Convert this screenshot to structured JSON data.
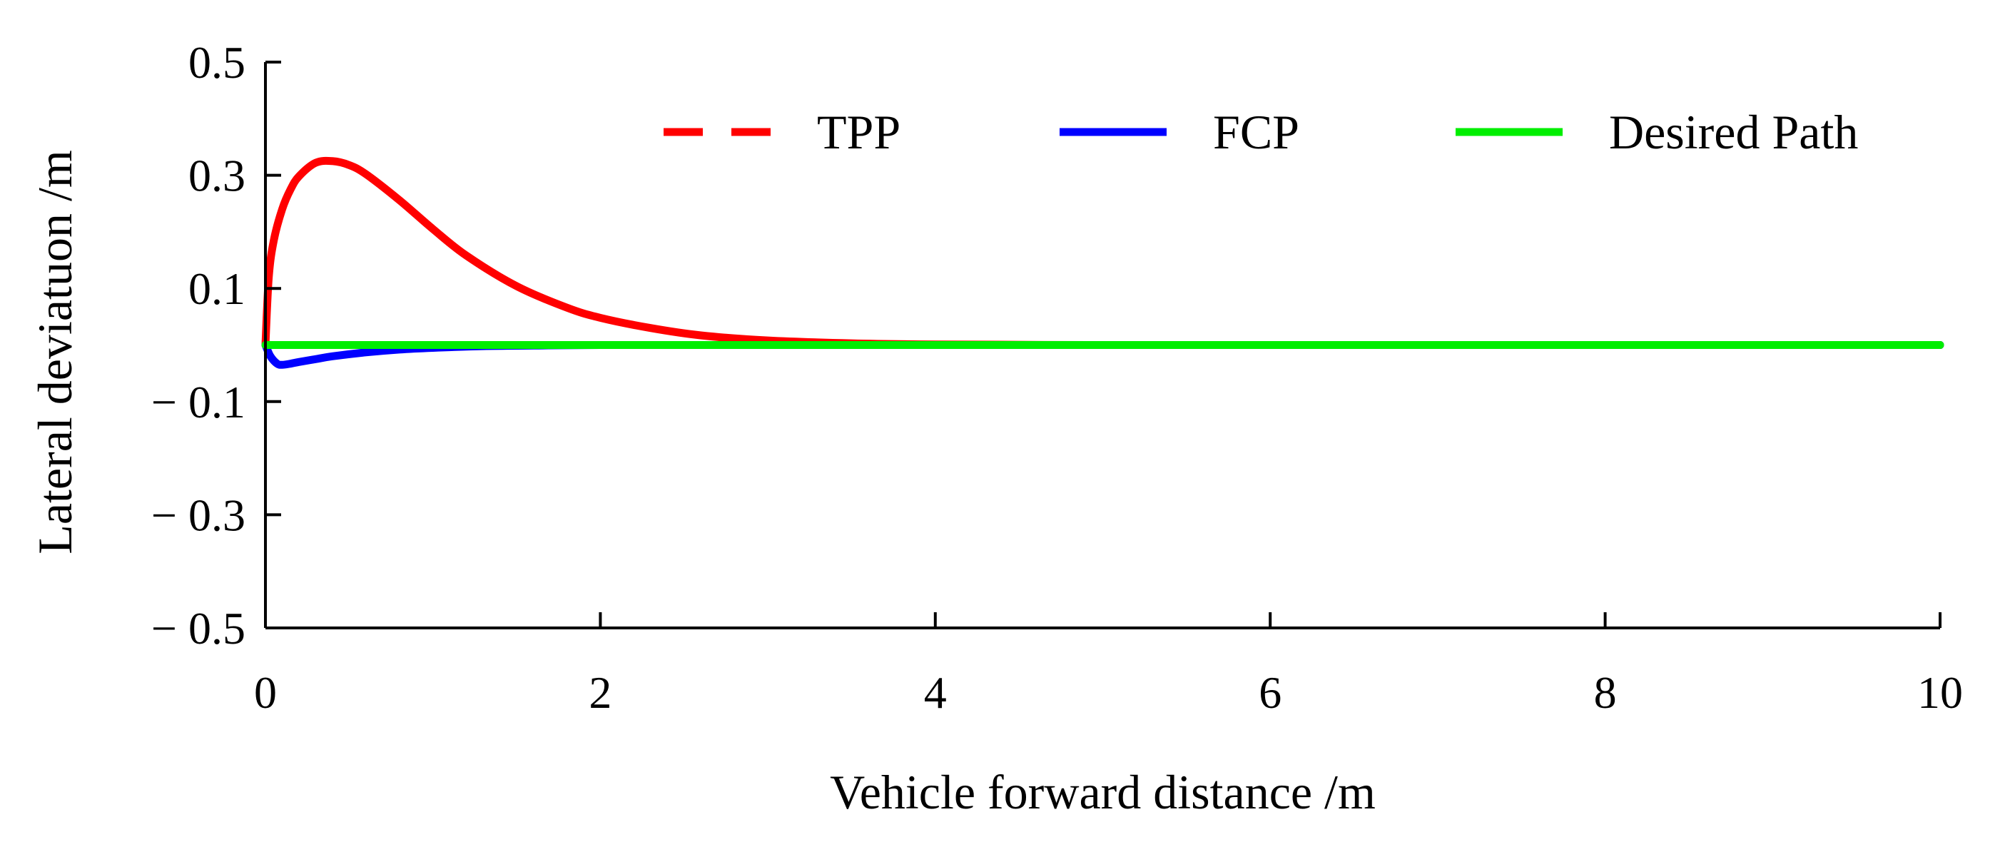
{
  "chart_data": {
    "type": "line",
    "title": "",
    "xlabel": "Vehicle forward distance /m",
    "ylabel": "Lateral deviatuon /m",
    "xlim": [
      0,
      10
    ],
    "ylim": [
      -0.5,
      0.5
    ],
    "x_ticks": [
      0,
      2,
      4,
      6,
      8,
      10
    ],
    "x_tick_labels": [
      "0",
      "2",
      "4",
      "6",
      "8",
      "10"
    ],
    "y_ticks": [
      -0.5,
      -0.3,
      -0.1,
      0.1,
      0.3,
      0.5
    ],
    "y_tick_labels": [
      "− 0.5",
      "− 0.3",
      "− 0.1",
      "0.1",
      "0.3",
      "0.5"
    ],
    "grid": false,
    "legend_position": "top",
    "series": [
      {
        "name": "TPP",
        "color": "#ff0000",
        "style": "dashed",
        "x": [
          0,
          0.02,
          0.05,
          0.1,
          0.15,
          0.2,
          0.3,
          0.4,
          0.5,
          0.6,
          0.8,
          1.0,
          1.2,
          1.5,
          1.8,
          2.0,
          2.3,
          2.6,
          3.0,
          3.5,
          4.0,
          5.0,
          6.0,
          7.0,
          8.0,
          9.0,
          10.0
        ],
        "y": [
          0.0,
          0.12,
          0.185,
          0.24,
          0.275,
          0.298,
          0.322,
          0.325,
          0.318,
          0.302,
          0.256,
          0.205,
          0.158,
          0.104,
          0.066,
          0.048,
          0.03,
          0.017,
          0.008,
          0.003,
          0.001,
          0.0,
          0.0,
          0.0,
          0.0,
          0.0,
          0.0
        ]
      },
      {
        "name": "FCP",
        "color": "#0000ff",
        "style": "solid",
        "x": [
          0,
          0.03,
          0.07,
          0.1,
          0.15,
          0.2,
          0.3,
          0.4,
          0.6,
          0.8,
          1.0,
          1.3,
          1.6,
          2.0,
          3.0,
          4.0,
          6.0,
          8.0,
          10.0
        ],
        "y": [
          0.0,
          -0.02,
          -0.033,
          -0.035,
          -0.033,
          -0.03,
          -0.025,
          -0.02,
          -0.013,
          -0.008,
          -0.005,
          -0.002,
          -0.001,
          0.0,
          0.0,
          0.0,
          0.0,
          0.0,
          0.0
        ]
      },
      {
        "name": "Desired Path",
        "color": "#00ee00",
        "style": "solid",
        "x": [
          0,
          10
        ],
        "y": [
          0.0,
          0.0
        ]
      }
    ]
  }
}
